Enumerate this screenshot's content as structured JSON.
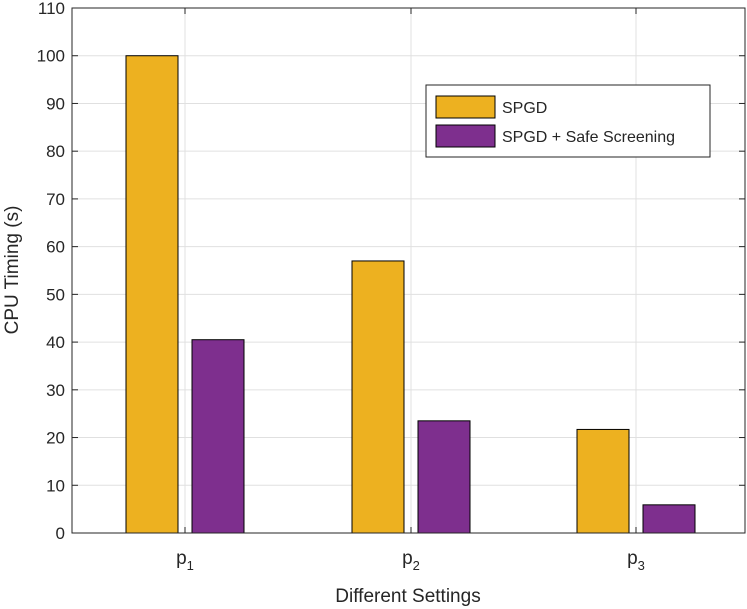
{
  "chart_data": {
    "type": "bar",
    "title": "",
    "xlabel": "Different Settings",
    "ylabel": "CPU Timing (s)",
    "ylim": [
      0,
      110
    ],
    "yticks": [
      0,
      10,
      20,
      30,
      40,
      50,
      60,
      70,
      80,
      90,
      100,
      110
    ],
    "grid": true,
    "legend_position": "top-right",
    "categories": [
      {
        "base": "p",
        "sub": "1"
      },
      {
        "base": "p",
        "sub": "2"
      },
      {
        "base": "p",
        "sub": "3"
      }
    ],
    "series": [
      {
        "name": "SPGD",
        "color": "#EDB120",
        "values": [
          100,
          57,
          21.7
        ]
      },
      {
        "name": "SPGD + Safe Screening",
        "color": "#7E2F8E",
        "values": [
          40.5,
          23.5,
          5.9
        ]
      }
    ]
  }
}
